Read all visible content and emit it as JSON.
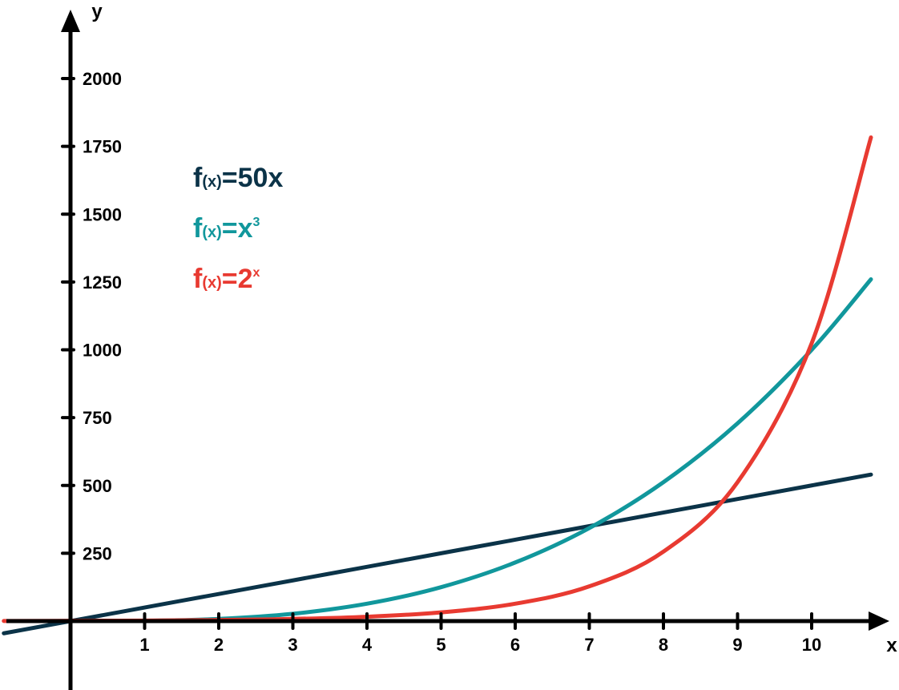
{
  "chart_data": {
    "type": "line",
    "xlabel": "x",
    "ylabel": "y",
    "xlim": [
      -0.9,
      11.2
    ],
    "ylim": [
      -1000,
      2250
    ],
    "x_ticks": [
      "1",
      "2",
      "3",
      "4",
      "5",
      "6",
      "7",
      "8",
      "9",
      "10"
    ],
    "x_tick_values": [
      1,
      2,
      3,
      4,
      5,
      6,
      7,
      8,
      9,
      10
    ],
    "y_ticks": [
      "250",
      "500",
      "750",
      "1000",
      "1250",
      "1500",
      "1750",
      "2000"
    ],
    "y_tick_values": [
      250,
      500,
      750,
      1000,
      1250,
      1500,
      1750,
      2000
    ],
    "grid": false,
    "legend_position": "top-left",
    "legend": [
      {
        "f": "f",
        "arg": "(x)",
        "rhs": "=50x",
        "sup": "",
        "color": "#0b3348"
      },
      {
        "f": "f",
        "arg": "(x)",
        "rhs": "=x",
        "sup": "3",
        "color": "#11979c"
      },
      {
        "f": "f",
        "arg": "(x)",
        "rhs": "=2",
        "sup": "x",
        "color": "#e83a31"
      }
    ],
    "series": [
      {
        "color": "#0b3348",
        "x": [
          -0.9,
          0,
          1,
          2,
          3,
          4,
          5,
          6,
          7,
          8,
          9,
          10,
          10.8
        ],
        "values": [
          -45,
          0,
          50,
          100,
          150,
          200,
          250,
          300,
          350,
          400,
          450,
          500,
          540
        ]
      },
      {
        "color": "#11979c",
        "x": [
          0,
          1,
          2,
          3,
          4,
          5,
          6,
          7,
          8,
          9,
          10,
          10.8
        ],
        "values": [
          0,
          1,
          8,
          27,
          64,
          125,
          216,
          343,
          512,
          729,
          1000,
          1260
        ]
      },
      {
        "color": "#e83a31",
        "x": [
          -0.9,
          0,
          1,
          2,
          3,
          4,
          5,
          6,
          7,
          8,
          9,
          10,
          10.8
        ],
        "values": [
          0.5,
          1,
          2,
          4,
          8,
          16,
          32,
          64,
          128,
          256,
          512,
          1024,
          1783
        ]
      }
    ]
  }
}
